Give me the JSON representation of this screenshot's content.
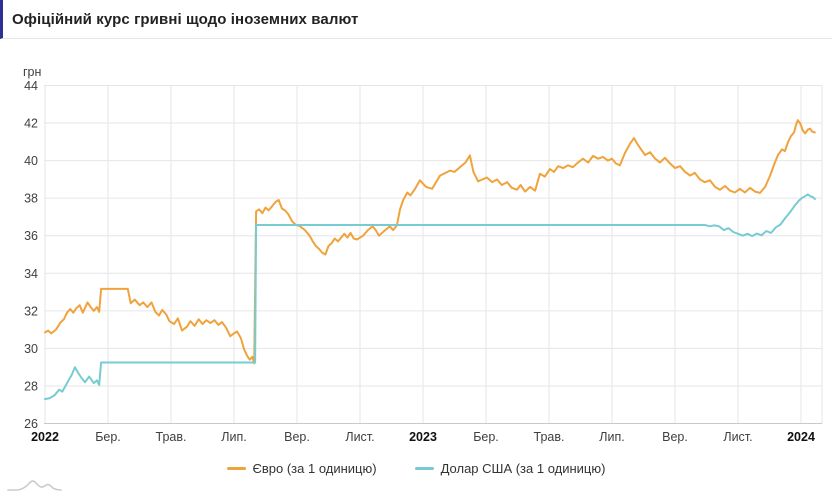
{
  "header": {
    "title": "Офіційний курс гривні щодо іноземних валют"
  },
  "legend": {
    "items": [
      {
        "label": "Євро (за 1 одиницю)",
        "color": "#f0a33c"
      },
      {
        "label": "Долар США (за 1 одиницю)",
        "color": "#76ccd2"
      }
    ]
  },
  "chart_data": {
    "type": "line",
    "title": "Офіційний курс гривні щодо іноземних валют",
    "ylabel": "грн",
    "ylim": [
      26,
      44
    ],
    "y_ticks": [
      44,
      42,
      40,
      38,
      36,
      34,
      32,
      30,
      28,
      26
    ],
    "x_unit": "months from 2022-01",
    "xlim": [
      0,
      24.7
    ],
    "x_ticks": [
      {
        "t": 0,
        "label": "2022",
        "bold": true
      },
      {
        "t": 2,
        "label": "Бер.",
        "bold": false
      },
      {
        "t": 4,
        "label": "Трав.",
        "bold": false
      },
      {
        "t": 6,
        "label": "Лип.",
        "bold": false
      },
      {
        "t": 8,
        "label": "Вер.",
        "bold": false
      },
      {
        "t": 10,
        "label": "Лист.",
        "bold": false
      },
      {
        "t": 12,
        "label": "2023",
        "bold": true
      },
      {
        "t": 14,
        "label": "Бер.",
        "bold": false
      },
      {
        "t": 16,
        "label": "Трав.",
        "bold": false
      },
      {
        "t": 18,
        "label": "Лип.",
        "bold": false
      },
      {
        "t": 20,
        "label": "Вер.",
        "bold": false
      },
      {
        "t": 22,
        "label": "Лист.",
        "bold": false
      },
      {
        "t": 24,
        "label": "2024",
        "bold": true
      }
    ],
    "grid": true,
    "legend_position": "bottom",
    "series": [
      {
        "name": "Євро (за 1 одиницю)",
        "color": "#f0a33c",
        "points": [
          [
            0,
            30.85
          ],
          [
            0.1,
            30.95
          ],
          [
            0.2,
            30.8
          ],
          [
            0.35,
            31.0
          ],
          [
            0.5,
            31.4
          ],
          [
            0.6,
            31.55
          ],
          [
            0.7,
            31.9
          ],
          [
            0.8,
            32.1
          ],
          [
            0.9,
            31.9
          ],
          [
            1.0,
            32.15
          ],
          [
            1.1,
            32.3
          ],
          [
            1.2,
            31.9
          ],
          [
            1.35,
            32.45
          ],
          [
            1.45,
            32.2
          ],
          [
            1.55,
            32.0
          ],
          [
            1.65,
            32.2
          ],
          [
            1.72,
            31.95
          ],
          [
            1.78,
            33.17
          ],
          [
            2.63,
            33.17
          ],
          [
            2.72,
            32.4
          ],
          [
            2.85,
            32.6
          ],
          [
            3.0,
            32.3
          ],
          [
            3.12,
            32.45
          ],
          [
            3.25,
            32.2
          ],
          [
            3.38,
            32.45
          ],
          [
            3.5,
            31.95
          ],
          [
            3.62,
            31.75
          ],
          [
            3.72,
            32.05
          ],
          [
            3.85,
            31.8
          ],
          [
            3.95,
            31.45
          ],
          [
            4.1,
            31.3
          ],
          [
            4.22,
            31.6
          ],
          [
            4.35,
            30.95
          ],
          [
            4.5,
            31.15
          ],
          [
            4.62,
            31.45
          ],
          [
            4.75,
            31.2
          ],
          [
            4.88,
            31.55
          ],
          [
            5.0,
            31.3
          ],
          [
            5.12,
            31.5
          ],
          [
            5.25,
            31.35
          ],
          [
            5.38,
            31.5
          ],
          [
            5.5,
            31.25
          ],
          [
            5.62,
            31.4
          ],
          [
            5.75,
            31.1
          ],
          [
            5.88,
            30.65
          ],
          [
            6.0,
            30.8
          ],
          [
            6.1,
            30.9
          ],
          [
            6.22,
            30.55
          ],
          [
            6.32,
            29.95
          ],
          [
            6.42,
            29.6
          ],
          [
            6.5,
            29.4
          ],
          [
            6.58,
            29.55
          ],
          [
            6.64,
            29.2
          ],
          [
            6.7,
            37.3
          ],
          [
            6.8,
            37.4
          ],
          [
            6.9,
            37.2
          ],
          [
            7.0,
            37.5
          ],
          [
            7.1,
            37.35
          ],
          [
            7.2,
            37.55
          ],
          [
            7.32,
            37.8
          ],
          [
            7.42,
            37.9
          ],
          [
            7.52,
            37.45
          ],
          [
            7.62,
            37.35
          ],
          [
            7.72,
            37.15
          ],
          [
            7.85,
            36.75
          ],
          [
            7.95,
            36.6
          ],
          [
            8.1,
            36.5
          ],
          [
            8.25,
            36.3
          ],
          [
            8.4,
            36.0
          ],
          [
            8.5,
            35.7
          ],
          [
            8.6,
            35.45
          ],
          [
            8.7,
            35.3
          ],
          [
            8.8,
            35.1
          ],
          [
            8.9,
            35.0
          ],
          [
            9.0,
            35.45
          ],
          [
            9.1,
            35.6
          ],
          [
            9.2,
            35.85
          ],
          [
            9.3,
            35.7
          ],
          [
            9.5,
            36.1
          ],
          [
            9.6,
            35.9
          ],
          [
            9.7,
            36.15
          ],
          [
            9.8,
            35.85
          ],
          [
            9.9,
            35.8
          ],
          [
            10.1,
            36.0
          ],
          [
            10.25,
            36.3
          ],
          [
            10.4,
            36.5
          ],
          [
            10.5,
            36.3
          ],
          [
            10.6,
            36.0
          ],
          [
            10.8,
            36.3
          ],
          [
            10.95,
            36.5
          ],
          [
            11.05,
            36.3
          ],
          [
            11.17,
            36.55
          ],
          [
            11.27,
            37.4
          ],
          [
            11.37,
            37.9
          ],
          [
            11.5,
            38.3
          ],
          [
            11.6,
            38.15
          ],
          [
            11.75,
            38.5
          ],
          [
            11.9,
            38.95
          ],
          [
            12.1,
            38.6
          ],
          [
            12.29,
            38.5
          ],
          [
            12.54,
            39.2
          ],
          [
            12.86,
            39.47
          ],
          [
            13.0,
            39.4
          ],
          [
            13.17,
            39.65
          ],
          [
            13.35,
            39.9
          ],
          [
            13.49,
            40.28
          ],
          [
            13.6,
            39.4
          ],
          [
            13.75,
            38.9
          ],
          [
            14.03,
            39.1
          ],
          [
            14.2,
            38.85
          ],
          [
            14.35,
            39.0
          ],
          [
            14.5,
            38.7
          ],
          [
            14.67,
            38.85
          ],
          [
            14.82,
            38.55
          ],
          [
            14.98,
            38.45
          ],
          [
            15.1,
            38.7
          ],
          [
            15.24,
            38.35
          ],
          [
            15.4,
            38.6
          ],
          [
            15.56,
            38.4
          ],
          [
            15.71,
            39.3
          ],
          [
            15.87,
            39.15
          ],
          [
            16.03,
            39.55
          ],
          [
            16.16,
            39.4
          ],
          [
            16.29,
            39.7
          ],
          [
            16.45,
            39.6
          ],
          [
            16.6,
            39.75
          ],
          [
            16.76,
            39.65
          ],
          [
            16.92,
            39.9
          ],
          [
            17.08,
            40.1
          ],
          [
            17.24,
            39.9
          ],
          [
            17.4,
            40.25
          ],
          [
            17.56,
            40.1
          ],
          [
            17.71,
            40.2
          ],
          [
            17.87,
            40.0
          ],
          [
            18.0,
            40.1
          ],
          [
            18.12,
            39.85
          ],
          [
            18.25,
            39.75
          ],
          [
            18.41,
            40.4
          ],
          [
            18.57,
            40.9
          ],
          [
            18.7,
            41.2
          ],
          [
            18.8,
            40.9
          ],
          [
            18.92,
            40.6
          ],
          [
            19.05,
            40.3
          ],
          [
            19.21,
            40.45
          ],
          [
            19.37,
            40.1
          ],
          [
            19.52,
            39.9
          ],
          [
            19.68,
            40.15
          ],
          [
            19.84,
            39.85
          ],
          [
            20.0,
            39.6
          ],
          [
            20.16,
            39.7
          ],
          [
            20.32,
            39.4
          ],
          [
            20.48,
            39.2
          ],
          [
            20.63,
            39.35
          ],
          [
            20.79,
            39.0
          ],
          [
            20.95,
            38.85
          ],
          [
            21.11,
            38.95
          ],
          [
            21.27,
            38.6
          ],
          [
            21.43,
            38.45
          ],
          [
            21.59,
            38.65
          ],
          [
            21.75,
            38.4
          ],
          [
            21.9,
            38.3
          ],
          [
            22.06,
            38.5
          ],
          [
            22.22,
            38.3
          ],
          [
            22.38,
            38.55
          ],
          [
            22.54,
            38.35
          ],
          [
            22.7,
            38.28
          ],
          [
            22.86,
            38.6
          ],
          [
            23.02,
            39.2
          ],
          [
            23.17,
            39.9
          ],
          [
            23.27,
            40.3
          ],
          [
            23.4,
            40.6
          ],
          [
            23.49,
            40.5
          ],
          [
            23.59,
            41.0
          ],
          [
            23.68,
            41.3
          ],
          [
            23.78,
            41.5
          ],
          [
            23.84,
            41.9
          ],
          [
            23.9,
            42.15
          ],
          [
            23.97,
            42.0
          ],
          [
            24.06,
            41.6
          ],
          [
            24.13,
            41.45
          ],
          [
            24.22,
            41.65
          ],
          [
            24.29,
            41.7
          ],
          [
            24.35,
            41.55
          ],
          [
            24.44,
            41.5
          ]
        ]
      },
      {
        "name": "Долар США (за 1 одиницю)",
        "color": "#76ccd2",
        "points": [
          [
            0,
            27.3
          ],
          [
            0.15,
            27.35
          ],
          [
            0.3,
            27.5
          ],
          [
            0.45,
            27.8
          ],
          [
            0.55,
            27.7
          ],
          [
            0.65,
            28.0
          ],
          [
            0.75,
            28.3
          ],
          [
            0.85,
            28.6
          ],
          [
            0.95,
            29.0
          ],
          [
            1.05,
            28.7
          ],
          [
            1.15,
            28.45
          ],
          [
            1.27,
            28.2
          ],
          [
            1.4,
            28.5
          ],
          [
            1.55,
            28.15
          ],
          [
            1.65,
            28.3
          ],
          [
            1.72,
            28.05
          ],
          [
            1.78,
            29.25
          ],
          [
            6.67,
            29.25
          ],
          [
            6.7,
            36.57
          ],
          [
            20.95,
            36.57
          ],
          [
            21.1,
            36.5
          ],
          [
            21.25,
            36.55
          ],
          [
            21.4,
            36.5
          ],
          [
            21.55,
            36.3
          ],
          [
            21.7,
            36.4
          ],
          [
            21.85,
            36.2
          ],
          [
            22.0,
            36.1
          ],
          [
            22.15,
            36.0
          ],
          [
            22.3,
            36.1
          ],
          [
            22.45,
            35.98
          ],
          [
            22.6,
            36.12
          ],
          [
            22.75,
            36.02
          ],
          [
            22.9,
            36.25
          ],
          [
            23.05,
            36.15
          ],
          [
            23.2,
            36.45
          ],
          [
            23.35,
            36.6
          ],
          [
            23.5,
            36.95
          ],
          [
            23.65,
            37.25
          ],
          [
            23.8,
            37.6
          ],
          [
            23.92,
            37.85
          ],
          [
            24.02,
            38.0
          ],
          [
            24.12,
            38.1
          ],
          [
            24.22,
            38.2
          ],
          [
            24.3,
            38.1
          ],
          [
            24.38,
            38.05
          ],
          [
            24.44,
            37.95
          ]
        ]
      }
    ]
  },
  "colors": {
    "accent_bar": "#2e3192",
    "grid": "#e6e6e6",
    "axis_line": "#c9c9c9",
    "tick_text": "#404040",
    "year_text": "#111111"
  }
}
